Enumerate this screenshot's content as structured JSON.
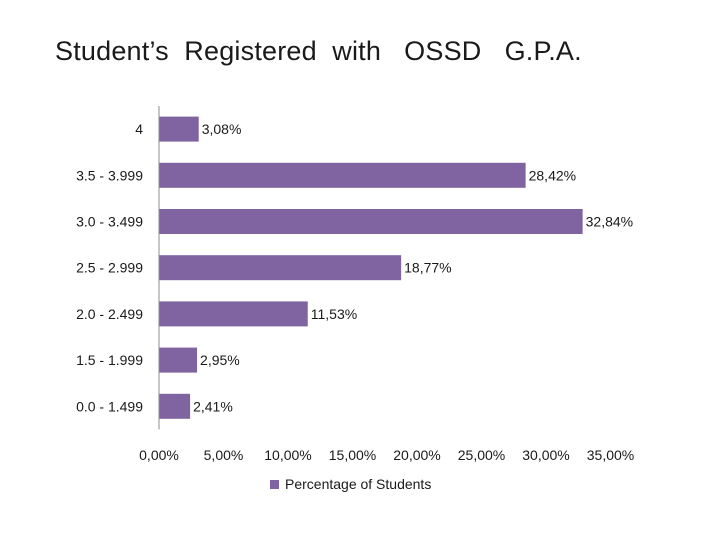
{
  "chart_data": {
    "type": "bar",
    "orientation": "horizontal",
    "title": "Student’s  Registered  with   OSSD   G.P.A.",
    "categories": [
      "4",
      "3.5 - 3.999",
      "3.0 - 3.499",
      "2.5 - 2.999",
      "2.0 - 2.499",
      "1.5 - 1.999",
      "0.0 - 1.499"
    ],
    "series": [
      {
        "name": "Percentage of Students",
        "values": [
          3.08,
          28.42,
          32.84,
          18.77,
          11.53,
          2.95,
          2.41
        ],
        "labels": [
          "3,08%",
          "28,42%",
          "32,84%",
          "18,77%",
          "11,53%",
          "2,95%",
          "2,41%"
        ],
        "color": "#8064a2"
      }
    ],
    "xlim": [
      0,
      35
    ],
    "xticks": [
      0,
      5,
      10,
      15,
      20,
      25,
      30,
      35
    ],
    "xtick_labels": [
      "0,00%",
      "5,00%",
      "10,00%",
      "15,00%",
      "20,00%",
      "25,00%",
      "30,00%",
      "35,00%"
    ],
    "grid": false,
    "legend_position": "bottom"
  }
}
